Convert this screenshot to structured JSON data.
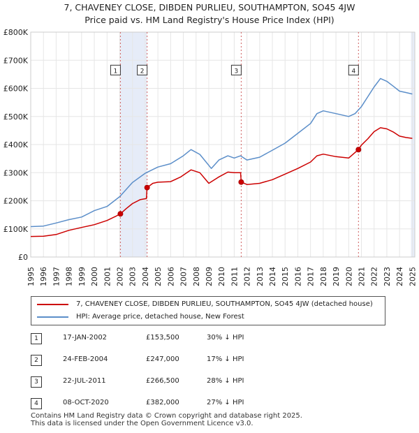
{
  "header": {
    "title_line1": "7, CHAVENEY CLOSE, DIBDEN PURLIEU, SOUTHAMPTON, SO45 4JW",
    "title_line2": "Price paid vs. HM Land Registry's House Price Index (HPI)"
  },
  "chart_data": {
    "type": "line",
    "xlim": [
      1995,
      2025.2
    ],
    "ylim": [
      0,
      800000
    ],
    "y_ticks": [
      0,
      100000,
      200000,
      300000,
      400000,
      500000,
      600000,
      700000,
      800000
    ],
    "y_tick_labels": [
      "£0",
      "£100K",
      "£200K",
      "£300K",
      "£400K",
      "£500K",
      "£600K",
      "£700K",
      "£800K"
    ],
    "x_ticks": [
      1995,
      1996,
      1997,
      1998,
      1999,
      2000,
      2001,
      2002,
      2003,
      2004,
      2005,
      2006,
      2007,
      2008,
      2009,
      2010,
      2011,
      2012,
      2013,
      2014,
      2015,
      2016,
      2017,
      2018,
      2019,
      2020,
      2021,
      2022,
      2023,
      2024,
      2025
    ],
    "x_tick_labels": [
      "1995",
      "1996",
      "1997",
      "1998",
      "1999",
      "2000",
      "2001",
      "2002",
      "2003",
      "2004",
      "2005",
      "2006",
      "2007",
      "2008",
      "2009",
      "2010",
      "2011",
      "2012",
      "2013",
      "2014",
      "2015",
      "2016",
      "2017",
      "2018",
      "2019",
      "2020",
      "2021",
      "2022",
      "2023",
      "2024",
      "2025"
    ],
    "shaded_periods": [
      [
        2002.05,
        2004.15
      ],
      [
        2024.9,
        2025.2
      ]
    ],
    "series": [
      {
        "name": "HPI: Average price, detached house, New Forest",
        "color": "#5b8ec9",
        "points": [
          [
            1995,
            108000
          ],
          [
            1996,
            110000
          ],
          [
            1997,
            121000
          ],
          [
            1998,
            133000
          ],
          [
            1999,
            142000
          ],
          [
            2000,
            165000
          ],
          [
            2001,
            180000
          ],
          [
            2002,
            215000
          ],
          [
            2003,
            265000
          ],
          [
            2004,
            298000
          ],
          [
            2005,
            320000
          ],
          [
            2006,
            332000
          ],
          [
            2007,
            360000
          ],
          [
            2007.6,
            382000
          ],
          [
            2008.3,
            365000
          ],
          [
            2009.2,
            315000
          ],
          [
            2009.8,
            345000
          ],
          [
            2010.5,
            360000
          ],
          [
            2011,
            352000
          ],
          [
            2011.5,
            360000
          ],
          [
            2012,
            345000
          ],
          [
            2013,
            355000
          ],
          [
            2014,
            380000
          ],
          [
            2015,
            405000
          ],
          [
            2016,
            440000
          ],
          [
            2017,
            475000
          ],
          [
            2017.5,
            510000
          ],
          [
            2018,
            520000
          ],
          [
            2019,
            510000
          ],
          [
            2020,
            500000
          ],
          [
            2020.5,
            510000
          ],
          [
            2021,
            535000
          ],
          [
            2021.5,
            570000
          ],
          [
            2022,
            605000
          ],
          [
            2022.5,
            635000
          ],
          [
            2023,
            625000
          ],
          [
            2023.5,
            608000
          ],
          [
            2024,
            590000
          ],
          [
            2024.5,
            585000
          ],
          [
            2025,
            580000
          ]
        ]
      },
      {
        "name": "7, CHAVENEY CLOSE, DIBDEN PURLIEU, SOUTHAMPTON, SO45 4JW (detached house)",
        "color": "#cc0000",
        "points": [
          [
            1995,
            73000
          ],
          [
            1996,
            74000
          ],
          [
            1997,
            80000
          ],
          [
            1998,
            95000
          ],
          [
            1999,
            105000
          ],
          [
            2000,
            115000
          ],
          [
            2001,
            130000
          ],
          [
            2001.7,
            145000
          ],
          [
            2002.05,
            153500
          ],
          [
            2002.5,
            172000
          ],
          [
            2003,
            190000
          ],
          [
            2003.6,
            204000
          ],
          [
            2004.1,
            208000
          ],
          [
            2004.15,
            247000
          ],
          [
            2004.6,
            262000
          ],
          [
            2005,
            266000
          ],
          [
            2006,
            268000
          ],
          [
            2006.8,
            285000
          ],
          [
            2007.6,
            310000
          ],
          [
            2008.3,
            300000
          ],
          [
            2009,
            262000
          ],
          [
            2009.8,
            285000
          ],
          [
            2010.5,
            302000
          ],
          [
            2011,
            300000
          ],
          [
            2011.5,
            300000
          ],
          [
            2011.55,
            266500
          ],
          [
            2012,
            258000
          ],
          [
            2013,
            262000
          ],
          [
            2014,
            275000
          ],
          [
            2015,
            295000
          ],
          [
            2016,
            315000
          ],
          [
            2017,
            338000
          ],
          [
            2017.5,
            360000
          ],
          [
            2018,
            366000
          ],
          [
            2019,
            357000
          ],
          [
            2020,
            352000
          ],
          [
            2020.77,
            382000
          ],
          [
            2021,
            398000
          ],
          [
            2021.5,
            420000
          ],
          [
            2022,
            446000
          ],
          [
            2022.5,
            460000
          ],
          [
            2023,
            456000
          ],
          [
            2023.5,
            445000
          ],
          [
            2024,
            430000
          ],
          [
            2024.5,
            425000
          ],
          [
            2025,
            422000
          ]
        ]
      }
    ],
    "sales": [
      {
        "id": "1",
        "x": 2002.05,
        "price": 153500
      },
      {
        "id": "2",
        "x": 2004.15,
        "price": 247000
      },
      {
        "id": "3",
        "x": 2011.55,
        "price": 266500
      },
      {
        "id": "4",
        "x": 2020.77,
        "price": 382000
      }
    ],
    "marker_y": 665000
  },
  "legend": {
    "property_label": "7, CHAVENEY CLOSE, DIBDEN PURLIEU, SOUTHAMPTON, SO45 4JW (detached house)",
    "hpi_label": "HPI: Average price, detached house, New Forest",
    "property_color": "#cc0000",
    "hpi_color": "#5b8ec9"
  },
  "transactions": [
    {
      "id": "1",
      "date": "17-JAN-2002",
      "price": "£153,500",
      "hpi": "30% ↓ HPI"
    },
    {
      "id": "2",
      "date": "24-FEB-2004",
      "price": "£247,000",
      "hpi": "17% ↓ HPI"
    },
    {
      "id": "3",
      "date": "22-JUL-2011",
      "price": "£266,500",
      "hpi": "28% ↓ HPI"
    },
    {
      "id": "4",
      "date": "08-OCT-2020",
      "price": "£382,000",
      "hpi": "27% ↓ HPI"
    }
  ],
  "footer": {
    "line1": "Contains HM Land Registry data © Crown copyright and database right 2025.",
    "line2": "This data is licensed under the Open Government Licence v3.0."
  }
}
